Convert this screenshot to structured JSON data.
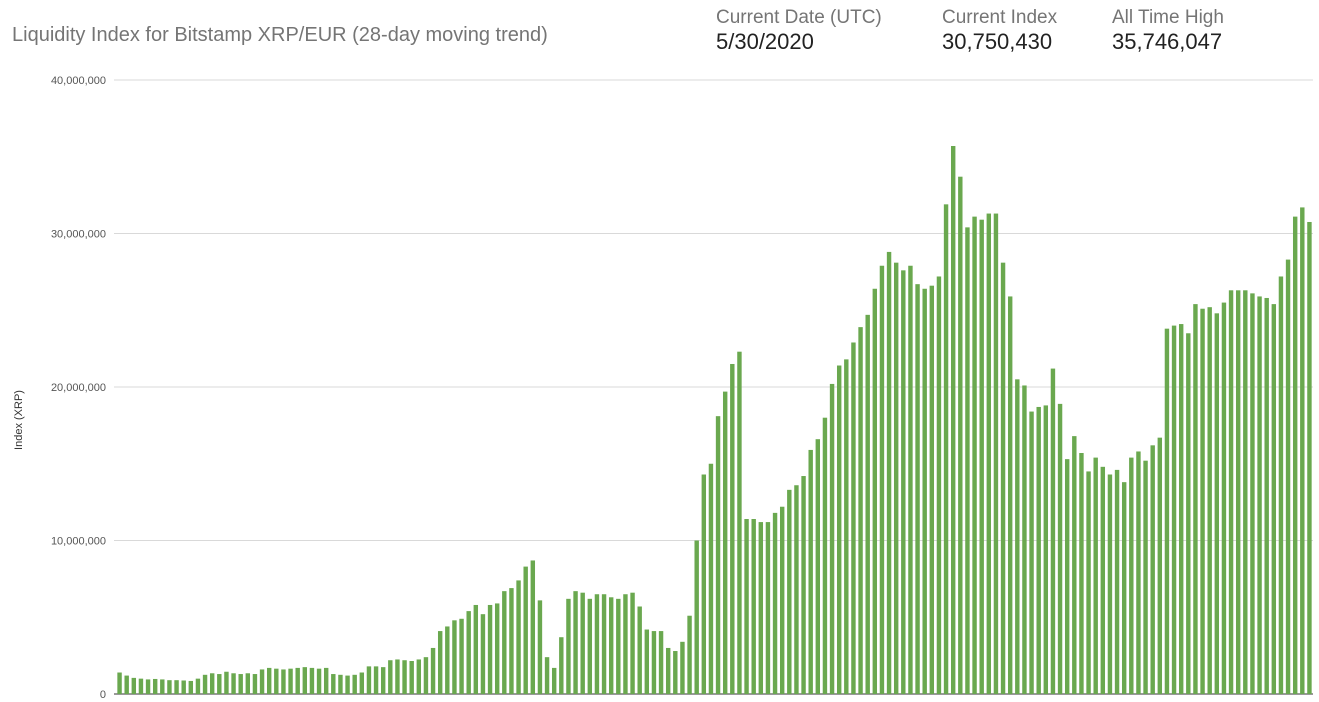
{
  "header": {
    "title": "Liquidity Index for Bitstamp XRP/EUR (28-day moving trend)",
    "stats": [
      {
        "label": "Current Date (UTC)",
        "value": "5/30/2020"
      },
      {
        "label": "Current Index",
        "value": "30,750,430"
      },
      {
        "label": "All Time High",
        "value": "35,746,047"
      }
    ]
  },
  "chart_data": {
    "type": "bar",
    "title": "Liquidity Index for Bitstamp XRP/EUR (28-day moving trend)",
    "ylabel": "Index (XRP)",
    "xlabel": "",
    "ylim": [
      0,
      40000000
    ],
    "yticks": [
      0,
      10000000,
      20000000,
      30000000,
      40000000
    ],
    "ytick_labels": [
      "0",
      "10,000,000",
      "20,000,000",
      "30,000,000",
      "40,000,000"
    ],
    "grid": true,
    "bar_color": "#6aa84f",
    "values": [
      1400000,
      1200000,
      1050000,
      1000000,
      950000,
      980000,
      950000,
      900000,
      900000,
      880000,
      850000,
      1000000,
      1250000,
      1350000,
      1300000,
      1450000,
      1350000,
      1300000,
      1350000,
      1300000,
      1600000,
      1700000,
      1650000,
      1600000,
      1650000,
      1700000,
      1750000,
      1700000,
      1650000,
      1700000,
      1300000,
      1250000,
      1200000,
      1250000,
      1400000,
      1800000,
      1800000,
      1750000,
      2200000,
      2250000,
      2200000,
      2150000,
      2250000,
      2400000,
      3000000,
      4100000,
      4400000,
      4800000,
      4900000,
      5400000,
      5800000,
      5200000,
      5800000,
      5900000,
      6700000,
      6900000,
      7400000,
      8300000,
      8700000,
      6100000,
      2400000,
      1700000,
      3700000,
      6200000,
      6700000,
      6600000,
      6200000,
      6500000,
      6500000,
      6300000,
      6200000,
      6500000,
      6600000,
      5700000,
      4200000,
      4100000,
      4100000,
      3000000,
      2800000,
      3400000,
      5100000,
      10000000,
      14300000,
      15000000,
      18100000,
      19700000,
      21500000,
      22300000,
      11400000,
      11400000,
      11200000,
      11200000,
      11800000,
      12200000,
      13300000,
      13600000,
      14200000,
      15900000,
      16600000,
      18000000,
      20200000,
      21400000,
      21800000,
      22900000,
      23900000,
      24700000,
      26400000,
      27900000,
      28800000,
      28100000,
      27600000,
      27900000,
      26700000,
      26400000,
      26600000,
      27200000,
      31900000,
      35700000,
      33700000,
      30400000,
      31100000,
      30900000,
      31300000,
      31300000,
      28100000,
      25900000,
      20500000,
      20100000,
      18400000,
      18700000,
      18800000,
      21200000,
      18900000,
      15300000,
      16800000,
      15700000,
      14500000,
      15400000,
      14800000,
      14300000,
      14600000,
      13800000,
      15400000,
      15800000,
      15200000,
      16200000,
      16700000,
      23800000,
      24000000,
      24100000,
      23500000,
      25400000,
      25100000,
      25200000,
      24800000,
      25500000,
      26300000,
      26300000,
      26300000,
      26100000,
      25900000,
      25800000,
      25400000,
      27200000,
      28300000,
      31100000,
      31700000,
      30750430
    ]
  }
}
